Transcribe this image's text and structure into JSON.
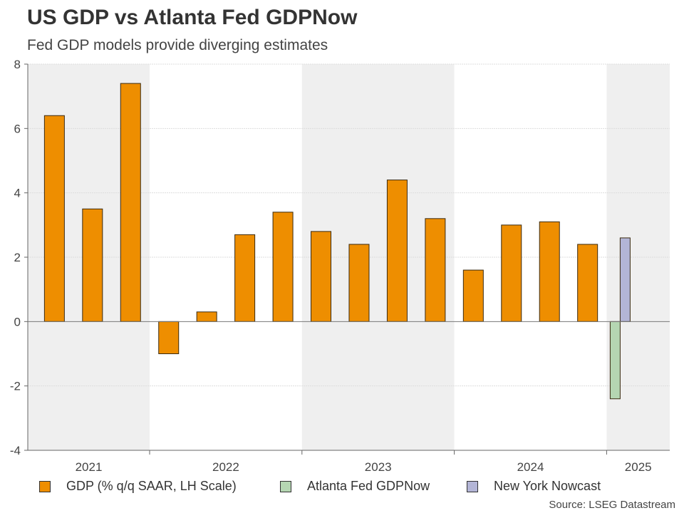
{
  "title": "US GDP vs Atlanta Fed GDPNow",
  "subtitle": "Fed GDP models provide diverging estimates",
  "source": "Source: LSEG Datastream",
  "chart_data": {
    "type": "bar",
    "title": "US GDP vs Atlanta Fed GDPNow",
    "subtitle": "Fed GDP models provide diverging estimates",
    "ylim": [
      -4,
      8
    ],
    "yticks": [
      -4,
      -2,
      0,
      2,
      4,
      6,
      8
    ],
    "grid": true,
    "year_labels": [
      "2021",
      "2022",
      "2023",
      "2024",
      "2025"
    ],
    "legend_position": "bottom",
    "series": [
      {
        "name": "GDP (% q/q SAAR, LH Scale)",
        "color": "#EE8E00",
        "x": [
          "2021-Q2",
          "2021-Q3",
          "2021-Q4",
          "2022-Q1",
          "2022-Q2",
          "2022-Q3",
          "2022-Q4",
          "2023-Q1",
          "2023-Q2",
          "2023-Q3",
          "2023-Q4",
          "2024-Q1",
          "2024-Q2",
          "2024-Q3",
          "2024-Q4"
        ],
        "values": [
          6.4,
          3.5,
          7.4,
          -1.0,
          0.3,
          2.7,
          3.4,
          2.8,
          2.4,
          4.4,
          3.2,
          1.6,
          3.0,
          3.1,
          2.4
        ]
      },
      {
        "name": "Atlanta Fed GDPNow",
        "color": "#B5D6B2",
        "x": [
          "2025-Q1"
        ],
        "values": [
          -2.4
        ]
      },
      {
        "name": "New York Nowcast",
        "color": "#B3B5D6",
        "x": [
          "2025-Q1"
        ],
        "values": [
          2.6
        ]
      }
    ]
  }
}
